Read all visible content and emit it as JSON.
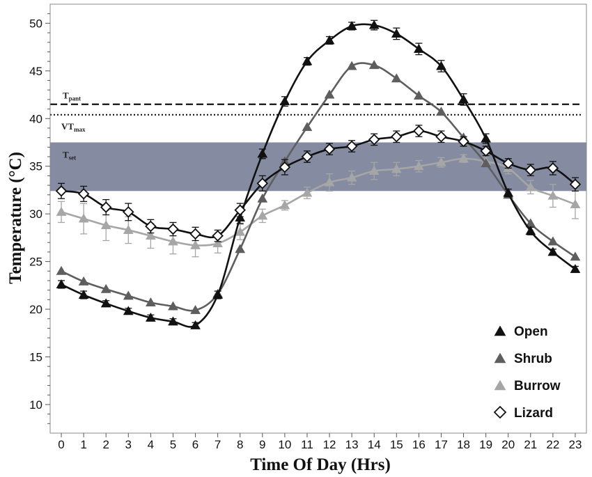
{
  "chart_data": {
    "type": "line",
    "xlabel": "Time Of Day (Hrs)",
    "ylabel_main": "Temperature (",
    "ylabel_unit": "°C)",
    "ylim": [
      7,
      52
    ],
    "xlim": [
      -0.5,
      23.5
    ],
    "y_ticks": [
      10,
      15,
      20,
      25,
      30,
      35,
      40,
      45,
      50
    ],
    "categories": [
      0,
      1,
      2,
      3,
      4,
      5,
      6,
      7,
      8,
      9,
      10,
      11,
      12,
      13,
      14,
      15,
      16,
      17,
      18,
      19,
      20,
      21,
      22,
      23
    ],
    "x_tick_labels": [
      "0",
      "1",
      "2",
      "3",
      "4",
      "5",
      "6",
      "7",
      "8",
      "9",
      "10",
      "11",
      "12",
      "13",
      "14",
      "15",
      "16",
      "17",
      "18",
      "19",
      "20",
      "21",
      "22",
      "23"
    ],
    "grid": false,
    "legend_position": "bottom-right",
    "reference_lines": {
      "t_pant": {
        "label_main": "T",
        "label_sub": "pant",
        "value": 41.5,
        "style": "dashed"
      },
      "vt_max": {
        "label_main": "VT",
        "label_sub": "max",
        "value": 40.4,
        "style": "dotted"
      }
    },
    "band": {
      "label_main": "T",
      "label_sub": "set",
      "y_low": 32.4,
      "y_high": 37.5,
      "color": "#7e869c"
    },
    "series": [
      {
        "name": "Open",
        "marker": "triangle",
        "color": "#111111",
        "values": [
          22.6,
          21.5,
          20.6,
          19.8,
          19.1,
          18.7,
          18.3,
          21.5,
          29.6,
          36.3,
          41.8,
          46.0,
          48.2,
          49.7,
          49.8,
          48.9,
          47.3,
          45.5,
          42.0,
          37.9,
          32.2,
          28.2,
          26.0,
          24.2
        ],
        "errors": [
          0.4,
          0.4,
          0.3,
          0.3,
          0.3,
          0.3,
          0.3,
          0.4,
          0.6,
          0.5,
          0.5,
          0.4,
          0.4,
          0.4,
          0.5,
          0.6,
          0.6,
          0.6,
          0.6,
          0.5,
          0.4,
          0.4,
          0.3,
          0.3
        ]
      },
      {
        "name": "Shrub",
        "marker": "triangle",
        "color": "#5e5e5e",
        "values": [
          24.0,
          22.9,
          22.1,
          21.4,
          20.7,
          20.3,
          19.9,
          21.6,
          26.3,
          31.6,
          35.5,
          39.1,
          42.5,
          45.5,
          45.6,
          44.2,
          42.4,
          40.7,
          38.0,
          35.3,
          32.0,
          29.0,
          27.1,
          25.5
        ]
      },
      {
        "name": "Burrow",
        "marker": "triangle",
        "color": "#a6a6a6",
        "values": [
          30.2,
          29.5,
          28.8,
          28.3,
          27.7,
          27.1,
          26.7,
          26.9,
          28.1,
          29.8,
          30.9,
          32.2,
          33.3,
          33.8,
          34.5,
          34.7,
          35.0,
          35.4,
          35.8,
          35.5,
          34.8,
          32.8,
          31.9,
          31.0
        ],
        "errors": [
          1.1,
          1.6,
          1.6,
          1.4,
          1.3,
          1.3,
          1.2,
          1.0,
          0.8,
          0.7,
          0.5,
          0.6,
          0.9,
          0.7,
          0.9,
          0.7,
          0.6,
          0.5,
          0.4,
          0.5,
          0.6,
          0.7,
          1.2,
          1.5
        ]
      },
      {
        "name": "Lizard",
        "marker": "diamond",
        "color": "#111111",
        "values": [
          32.4,
          32.1,
          30.7,
          30.2,
          28.7,
          28.4,
          27.9,
          27.7,
          30.4,
          33.2,
          34.9,
          36.0,
          36.8,
          37.1,
          37.8,
          38.1,
          38.7,
          38.1,
          37.6,
          36.6,
          35.3,
          34.6,
          34.8,
          33.1
        ],
        "errors": [
          0.8,
          0.8,
          0.8,
          0.9,
          0.7,
          0.7,
          0.7,
          0.6,
          0.7,
          0.8,
          0.8,
          0.6,
          0.6,
          0.6,
          0.6,
          0.6,
          0.6,
          0.6,
          0.5,
          0.5,
          0.5,
          0.6,
          0.7,
          0.7
        ]
      }
    ]
  }
}
